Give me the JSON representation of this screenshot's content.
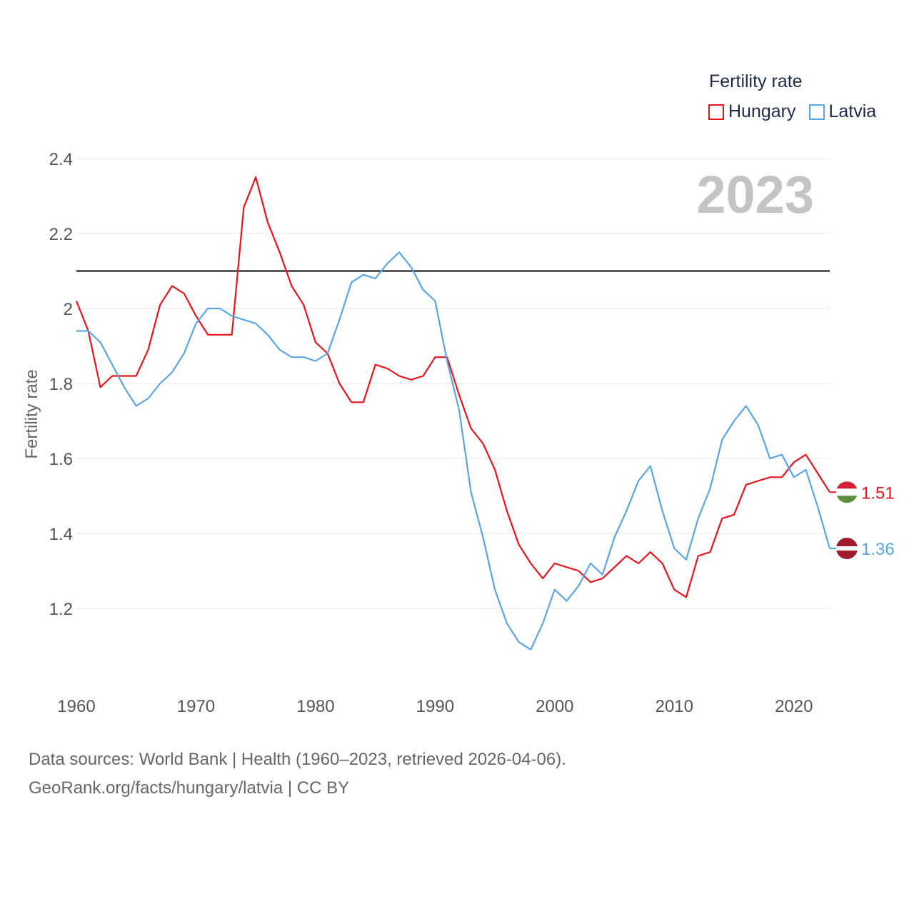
{
  "legend": {
    "title": "Fertility rate",
    "items": [
      {
        "label": "Hungary",
        "color": "#e8141c"
      },
      {
        "label": "Latvia",
        "color": "#5aa5e6"
      }
    ]
  },
  "year_badge": "2023",
  "footer": {
    "line1": "Data sources: World Bank | Health (1960–2023, retrieved 2026-04-06).",
    "line2": "GeoRank.org/facts/hungary/latvia | CC BY"
  },
  "chart_data": {
    "type": "line",
    "ylabel": "Fertility rate",
    "xlabel": "",
    "xlim": [
      1960,
      2023
    ],
    "ylim": [
      1.0,
      2.45
    ],
    "x_ticks": [
      "1960",
      "1970",
      "1980",
      "1990",
      "2000",
      "2010",
      "2020"
    ],
    "y_ticks": [
      "1.2",
      "1.4",
      "1.6",
      "1.8",
      "2",
      "2.2",
      "2.4"
    ],
    "reference_line": 2.1,
    "x": [
      1960,
      1961,
      1962,
      1963,
      1964,
      1965,
      1966,
      1967,
      1968,
      1969,
      1970,
      1971,
      1972,
      1973,
      1974,
      1975,
      1976,
      1977,
      1978,
      1979,
      1980,
      1981,
      1982,
      1983,
      1984,
      1985,
      1986,
      1987,
      1988,
      1989,
      1990,
      1991,
      1992,
      1993,
      1994,
      1995,
      1996,
      1997,
      1998,
      1999,
      2000,
      2001,
      2002,
      2003,
      2004,
      2005,
      2006,
      2007,
      2008,
      2009,
      2010,
      2011,
      2012,
      2013,
      2014,
      2015,
      2016,
      2017,
      2018,
      2019,
      2020,
      2021,
      2022,
      2023
    ],
    "series": [
      {
        "name": "Hungary",
        "color": "#e8141c",
        "end_label": "1.51",
        "values": [
          2.02,
          1.94,
          1.79,
          1.82,
          1.82,
          1.82,
          1.89,
          2.01,
          2.06,
          2.04,
          1.98,
          1.93,
          1.93,
          1.93,
          2.27,
          2.35,
          2.23,
          2.15,
          2.06,
          2.01,
          1.91,
          1.88,
          1.8,
          1.75,
          1.75,
          1.85,
          1.84,
          1.82,
          1.81,
          1.82,
          1.87,
          1.87,
          1.77,
          1.68,
          1.64,
          1.57,
          1.46,
          1.37,
          1.32,
          1.28,
          1.32,
          1.31,
          1.3,
          1.27,
          1.28,
          1.31,
          1.34,
          1.32,
          1.35,
          1.32,
          1.25,
          1.23,
          1.34,
          1.35,
          1.44,
          1.45,
          1.53,
          1.54,
          1.55,
          1.55,
          1.59,
          1.61,
          1.56,
          1.51
        ]
      },
      {
        "name": "Latvia",
        "color": "#5aa5e6",
        "end_label": "1.36",
        "values": [
          1.94,
          1.94,
          1.91,
          1.85,
          1.79,
          1.74,
          1.76,
          1.8,
          1.83,
          1.88,
          1.96,
          2.0,
          2.0,
          1.98,
          1.97,
          1.96,
          1.93,
          1.89,
          1.87,
          1.87,
          1.86,
          1.88,
          1.97,
          2.07,
          2.09,
          2.08,
          2.12,
          2.15,
          2.11,
          2.05,
          2.02,
          1.86,
          1.73,
          1.51,
          1.39,
          1.25,
          1.16,
          1.11,
          1.09,
          1.16,
          1.25,
          1.22,
          1.26,
          1.32,
          1.29,
          1.39,
          1.46,
          1.54,
          1.58,
          1.46,
          1.36,
          1.33,
          1.44,
          1.52,
          1.65,
          1.7,
          1.74,
          1.69,
          1.6,
          1.61,
          1.55,
          1.57,
          1.47,
          1.36
        ]
      }
    ]
  }
}
